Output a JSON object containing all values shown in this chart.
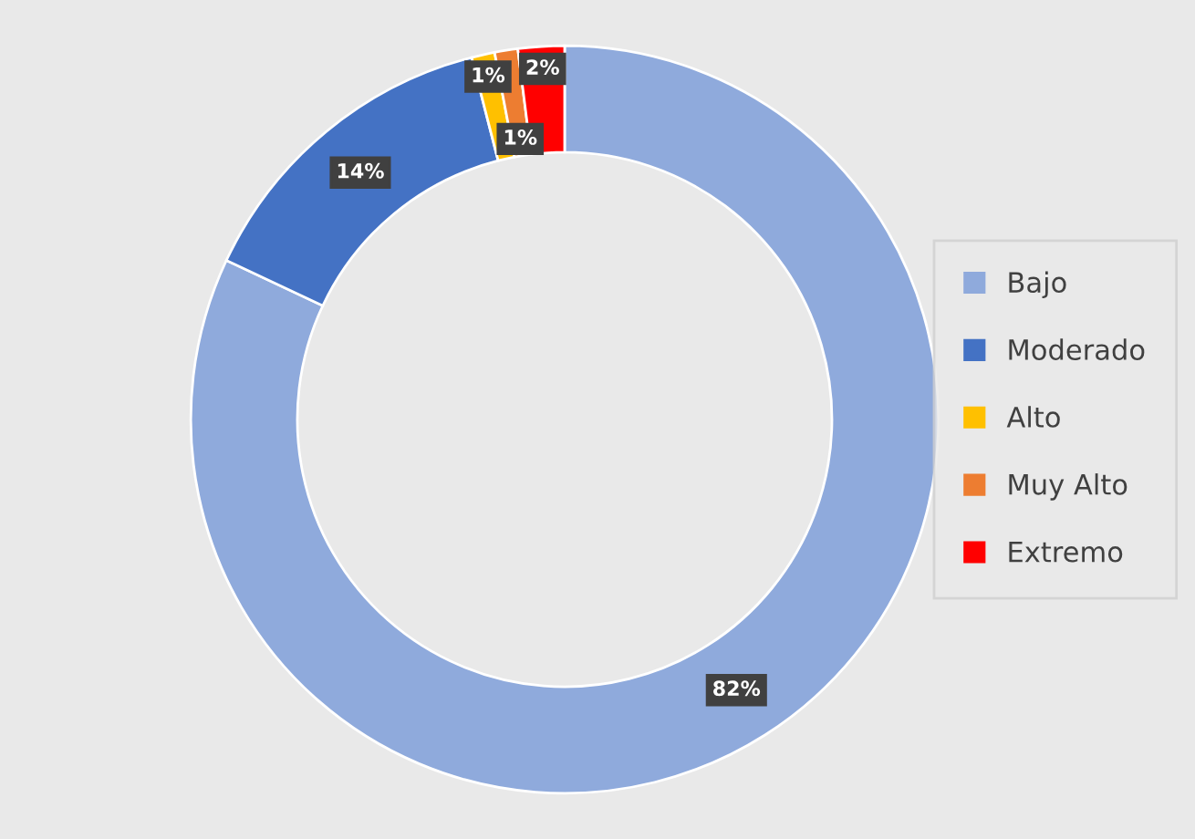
{
  "chart_data": {
    "type": "donut",
    "categories": [
      "Bajo",
      "Moderado",
      "Alto",
      "Muy Alto",
      "Extremo"
    ],
    "values": [
      82,
      14,
      1,
      1,
      2
    ],
    "colors": [
      "#8faadc",
      "#4472c4",
      "#ffc000",
      "#ed7d31",
      "#ff0000"
    ],
    "value_labels": [
      "82%",
      "14%",
      "1%",
      "1%",
      "2%"
    ],
    "legend": "right"
  }
}
